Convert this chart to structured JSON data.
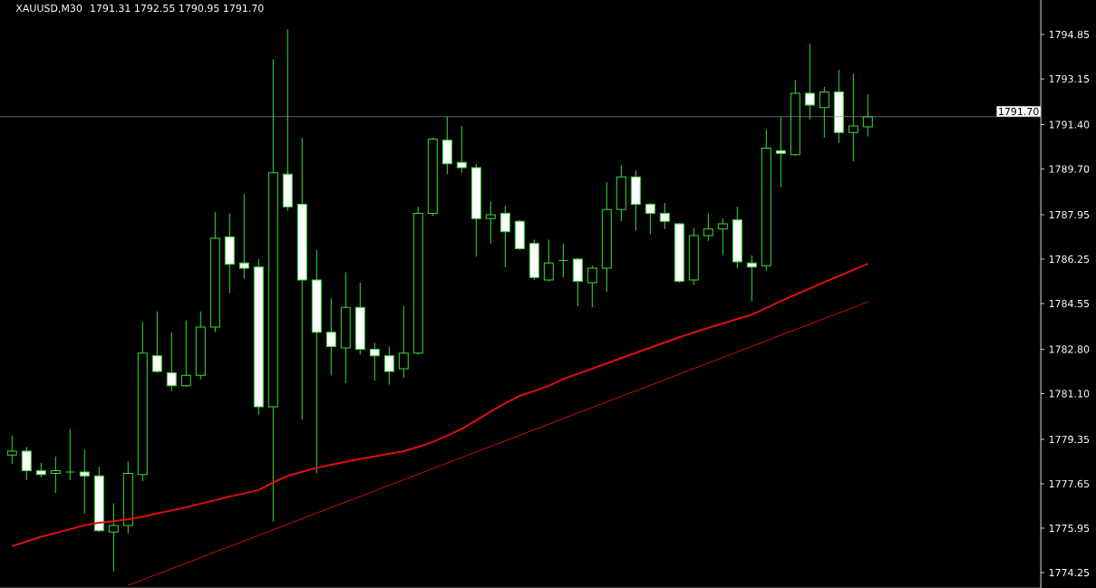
{
  "chart_data": {
    "type": "candlestick",
    "title": "XAUUSD,M30",
    "subtitle": "1791.31 1792.55 1790.95 1791.70",
    "categories": [
      null,
      null,
      null,
      null,
      null,
      null,
      null,
      null,
      null,
      null,
      null,
      null,
      null,
      null,
      null,
      null,
      null,
      null,
      null,
      null,
      null,
      null,
      null,
      null,
      null,
      null,
      null,
      null,
      null,
      null,
      null,
      null,
      null,
      null,
      null,
      null,
      null,
      null,
      null,
      null,
      null,
      null,
      null,
      null,
      null,
      null,
      null,
      null,
      null,
      null,
      null,
      null,
      null,
      null,
      null,
      null,
      null,
      null,
      null,
      null
    ],
    "color": "#3cdc3c",
    "ohlc": [
      [
        1778.75,
        1779.5,
        1778.4,
        1778.9
      ],
      [
        1778.9,
        1779.05,
        1777.8,
        1778.15
      ],
      [
        1778.15,
        1778.45,
        1777.9,
        1778.0
      ],
      [
        1778.05,
        1778.7,
        1777.3,
        1778.15
      ],
      [
        1778.1,
        1779.75,
        1777.8,
        1778.1
      ],
      [
        1778.1,
        1778.95,
        1776.5,
        1777.95
      ],
      [
        1777.95,
        1778.3,
        1775.8,
        1775.85
      ],
      [
        1775.8,
        1776.9,
        1774.3,
        1776.05
      ],
      [
        1776.05,
        1778.5,
        1775.75,
        1778.05
      ],
      [
        1778.0,
        1783.85,
        1777.75,
        1782.65
      ],
      [
        1782.55,
        1784.25,
        1781.9,
        1781.95
      ],
      [
        1781.9,
        1783.45,
        1781.2,
        1781.4
      ],
      [
        1781.4,
        1783.9,
        1781.35,
        1781.8
      ],
      [
        1781.8,
        1784.25,
        1781.65,
        1783.65
      ],
      [
        1783.65,
        1788.05,
        1783.45,
        1787.05
      ],
      [
        1787.1,
        1788.0,
        1784.95,
        1786.05
      ],
      [
        1786.1,
        1788.75,
        1785.5,
        1785.9
      ],
      [
        1785.95,
        1786.25,
        1780.3,
        1780.6
      ],
      [
        1780.6,
        1793.9,
        1776.2,
        1789.55
      ],
      [
        1789.5,
        1795.05,
        1788.1,
        1788.25
      ],
      [
        1788.35,
        1790.9,
        1780.1,
        1785.45
      ],
      [
        1785.45,
        1786.6,
        1778.05,
        1783.45
      ],
      [
        1783.45,
        1784.75,
        1781.8,
        1782.9
      ],
      [
        1782.85,
        1785.75,
        1781.5,
        1784.4
      ],
      [
        1784.4,
        1785.35,
        1782.6,
        1782.8
      ],
      [
        1782.8,
        1783.05,
        1781.6,
        1782.55
      ],
      [
        1782.55,
        1782.9,
        1781.45,
        1781.95
      ],
      [
        1782.05,
        1784.45,
        1781.7,
        1782.65
      ],
      [
        1782.65,
        1788.25,
        1782.6,
        1788.0
      ],
      [
        1788.0,
        1790.9,
        1787.9,
        1790.85
      ],
      [
        1790.8,
        1791.7,
        1789.5,
        1789.9
      ],
      [
        1789.95,
        1791.35,
        1789.55,
        1789.75
      ],
      [
        1789.75,
        1789.9,
        1786.35,
        1787.8
      ],
      [
        1787.8,
        1788.45,
        1786.85,
        1787.95
      ],
      [
        1788.0,
        1788.3,
        1785.95,
        1787.3
      ],
      [
        1787.7,
        1787.75,
        1786.6,
        1786.65
      ],
      [
        1786.85,
        1787.0,
        1785.45,
        1785.55
      ],
      [
        1785.45,
        1787.0,
        1785.4,
        1786.1
      ],
      [
        1786.2,
        1786.85,
        1785.55,
        1786.2
      ],
      [
        1786.25,
        1786.3,
        1784.45,
        1785.4
      ],
      [
        1785.35,
        1786.0,
        1784.4,
        1785.9
      ],
      [
        1785.9,
        1789.2,
        1785.0,
        1788.15
      ],
      [
        1788.15,
        1789.85,
        1787.7,
        1789.4
      ],
      [
        1789.4,
        1789.65,
        1787.35,
        1788.35
      ],
      [
        1788.35,
        1788.4,
        1787.2,
        1788.0
      ],
      [
        1788.0,
        1788.4,
        1787.4,
        1787.7
      ],
      [
        1787.6,
        1787.65,
        1785.35,
        1785.4
      ],
      [
        1785.45,
        1787.45,
        1785.25,
        1787.15
      ],
      [
        1787.15,
        1788.0,
        1786.95,
        1787.4
      ],
      [
        1787.4,
        1787.8,
        1786.4,
        1787.6
      ],
      [
        1787.75,
        1788.25,
        1785.9,
        1786.15
      ],
      [
        1786.1,
        1786.4,
        1784.65,
        1785.95
      ],
      [
        1786.0,
        1791.2,
        1785.8,
        1790.5
      ],
      [
        1790.4,
        1791.7,
        1789.0,
        1790.3
      ],
      [
        1790.25,
        1793.1,
        1790.2,
        1792.6
      ],
      [
        1792.6,
        1794.5,
        1791.6,
        1792.15
      ],
      [
        1792.05,
        1792.85,
        1790.9,
        1792.65
      ],
      [
        1792.65,
        1793.5,
        1790.7,
        1791.1
      ],
      [
        1791.1,
        1793.35,
        1790.0,
        1791.35
      ],
      [
        1791.31,
        1792.55,
        1790.95,
        1791.7
      ]
    ],
    "series": [
      {
        "type": "line",
        "color": "#e01010",
        "values": [
          1775.26,
          1775.44,
          1775.62,
          1775.77,
          1775.91,
          1776.06,
          1776.16,
          1776.22,
          1776.29,
          1776.39,
          1776.51,
          1776.63,
          1776.75,
          1776.89,
          1777.02,
          1777.16,
          1777.28,
          1777.41,
          1777.7,
          1777.95,
          1778.11,
          1778.26,
          1778.38,
          1778.49,
          1778.6,
          1778.7,
          1778.8,
          1778.9,
          1779.06,
          1779.25,
          1779.49,
          1779.75,
          1780.08,
          1780.42,
          1780.73,
          1781.02,
          1781.2,
          1781.4,
          1781.66,
          1781.86,
          1782.06,
          1782.26,
          1782.46,
          1782.66,
          1782.86,
          1783.06,
          1783.26,
          1783.44,
          1783.62,
          1783.79,
          1783.96,
          1784.12,
          1784.38,
          1784.64,
          1784.89,
          1785.13,
          1785.37,
          1785.6,
          1785.84,
          1786.07
        ]
      },
      {
        "type": "line",
        "color": "#e01010",
        "values": [
          null,
          null,
          null,
          null,
          null,
          null,
          null,
          null,
          1773.76,
          1773.97,
          1774.19,
          1774.4,
          1774.61,
          1774.82,
          1775.04,
          1775.25,
          1775.46,
          1775.68,
          1775.89,
          1776.1,
          1776.31,
          1776.53,
          1776.74,
          1776.95,
          1777.16,
          1777.38,
          1777.59,
          1777.8,
          1778.02,
          1778.23,
          1778.44,
          1778.66,
          1778.87,
          1779.08,
          1779.29,
          1779.51,
          1779.72,
          1779.93,
          1780.15,
          1780.36,
          1780.57,
          1780.78,
          1781.0,
          1781.21,
          1781.42,
          1781.63,
          1781.85,
          1782.06,
          1782.27,
          1782.49,
          1782.7,
          1782.91,
          1783.12,
          1783.34,
          1783.55,
          1783.76,
          1783.98,
          1784.19,
          1784.4,
          1784.61
        ]
      }
    ],
    "ylim": [
      1773.66,
      1796.17
    ],
    "yticks": [
      {
        "value": 1774.25,
        "label": "1774.25"
      },
      {
        "value": 1775.95,
        "label": "1775.95"
      },
      {
        "value": 1777.65,
        "label": "1777.65"
      },
      {
        "value": 1779.35,
        "label": "1779.35"
      },
      {
        "value": 1781.1,
        "label": "1781.10"
      },
      {
        "value": 1782.8,
        "label": "1782.80"
      },
      {
        "value": 1784.55,
        "label": "1784.55"
      },
      {
        "value": 1786.25,
        "label": "1786.25"
      },
      {
        "value": 1787.95,
        "label": "1787.95"
      },
      {
        "value": 1789.7,
        "label": "1789.70"
      },
      {
        "value": 1791.4,
        "label": "1791.40"
      },
      {
        "value": 1793.15,
        "label": "1793.15"
      },
      {
        "value": 1794.85,
        "label": "1794.85"
      }
    ],
    "ref_lines": [
      {
        "axis": "y",
        "value": 1791.7,
        "label": "1791.70",
        "color": "#8a9aa8"
      }
    ],
    "tick_labels": "y"
  }
}
